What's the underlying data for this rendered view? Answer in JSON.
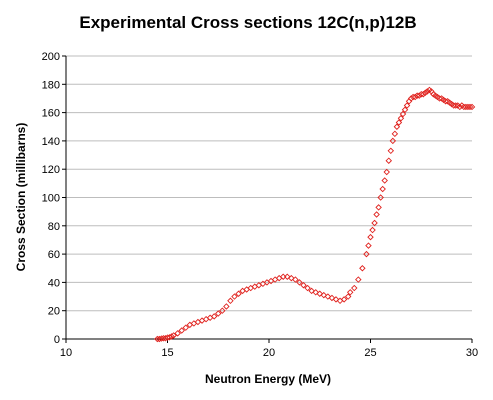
{
  "chart_data": {
    "type": "scatter",
    "title": "Experimental Cross sections 12C(n,p)12B",
    "xlabel": "Neutron Energy (MeV)",
    "ylabel": "Cross Section (millibarns)",
    "xlim": [
      10,
      30
    ],
    "ylim": [
      0,
      200
    ],
    "xticks": [
      "10",
      "15",
      "20",
      "25",
      "30"
    ],
    "yticks": [
      "0",
      "20",
      "40",
      "60",
      "80",
      "100",
      "120",
      "140",
      "160",
      "180",
      "200"
    ],
    "grid": "horizontal",
    "legend": "none",
    "marker": "diamond-open",
    "color": "#e0201c",
    "series": [
      {
        "x": [
          14.5,
          14.6,
          14.7,
          14.8,
          14.9,
          15.0,
          15.1,
          15.2,
          15.3,
          15.5,
          15.7,
          15.9,
          16.1,
          16.3,
          16.5,
          16.7,
          16.9,
          17.1,
          17.3,
          17.5,
          17.7,
          17.9,
          18.1,
          18.3,
          18.5,
          18.7,
          18.9,
          19.1,
          19.3,
          19.5,
          19.7,
          19.9,
          20.1,
          20.3,
          20.5,
          20.7,
          20.9,
          21.1,
          21.3,
          21.5,
          21.7,
          21.9,
          22.1,
          22.3,
          22.5,
          22.7,
          22.9,
          23.1,
          23.3,
          23.5,
          23.7,
          23.9,
          24.0,
          24.2,
          24.4,
          24.6,
          24.8,
          24.9,
          25.0,
          25.1,
          25.2,
          25.3,
          25.4,
          25.5,
          25.6,
          25.7,
          25.8,
          25.9,
          26.0,
          26.1,
          26.2,
          26.3,
          26.4,
          26.5,
          26.6,
          26.7,
          26.8,
          26.9,
          27.0,
          27.1,
          27.2,
          27.3,
          27.4,
          27.5,
          27.6,
          27.7,
          27.8,
          27.9,
          28.0,
          28.1,
          28.2,
          28.3,
          28.4,
          28.5,
          28.6,
          28.7,
          28.8,
          28.9,
          29.0,
          29.1,
          29.2,
          29.3,
          29.4,
          29.5,
          29.6,
          29.7,
          29.8,
          29.9,
          30.0
        ],
        "y": [
          0,
          0,
          0.3,
          0.5,
          0.5,
          1,
          1.2,
          1.8,
          2.5,
          4,
          6,
          8,
          10,
          11,
          12,
          13,
          14,
          15,
          16,
          18,
          20,
          23,
          27,
          30,
          32,
          34,
          35,
          36,
          37,
          38,
          39,
          40,
          41,
          42,
          43,
          44,
          44,
          43,
          42,
          40,
          38,
          36,
          34,
          33,
          32,
          31,
          30,
          29,
          28,
          27,
          28,
          30,
          33,
          36,
          42,
          50,
          60,
          66,
          72,
          77,
          82,
          88,
          93,
          100,
          106,
          112,
          118,
          126,
          133,
          140,
          145,
          150,
          153,
          156,
          159,
          162,
          165,
          168,
          170,
          171,
          171,
          172,
          172,
          173,
          173,
          174,
          175,
          176,
          175,
          173,
          172,
          171,
          170,
          170,
          169,
          168,
          168,
          167,
          166,
          165,
          165,
          165,
          164,
          165,
          164,
          164,
          164,
          164,
          164
        ]
      }
    ]
  }
}
